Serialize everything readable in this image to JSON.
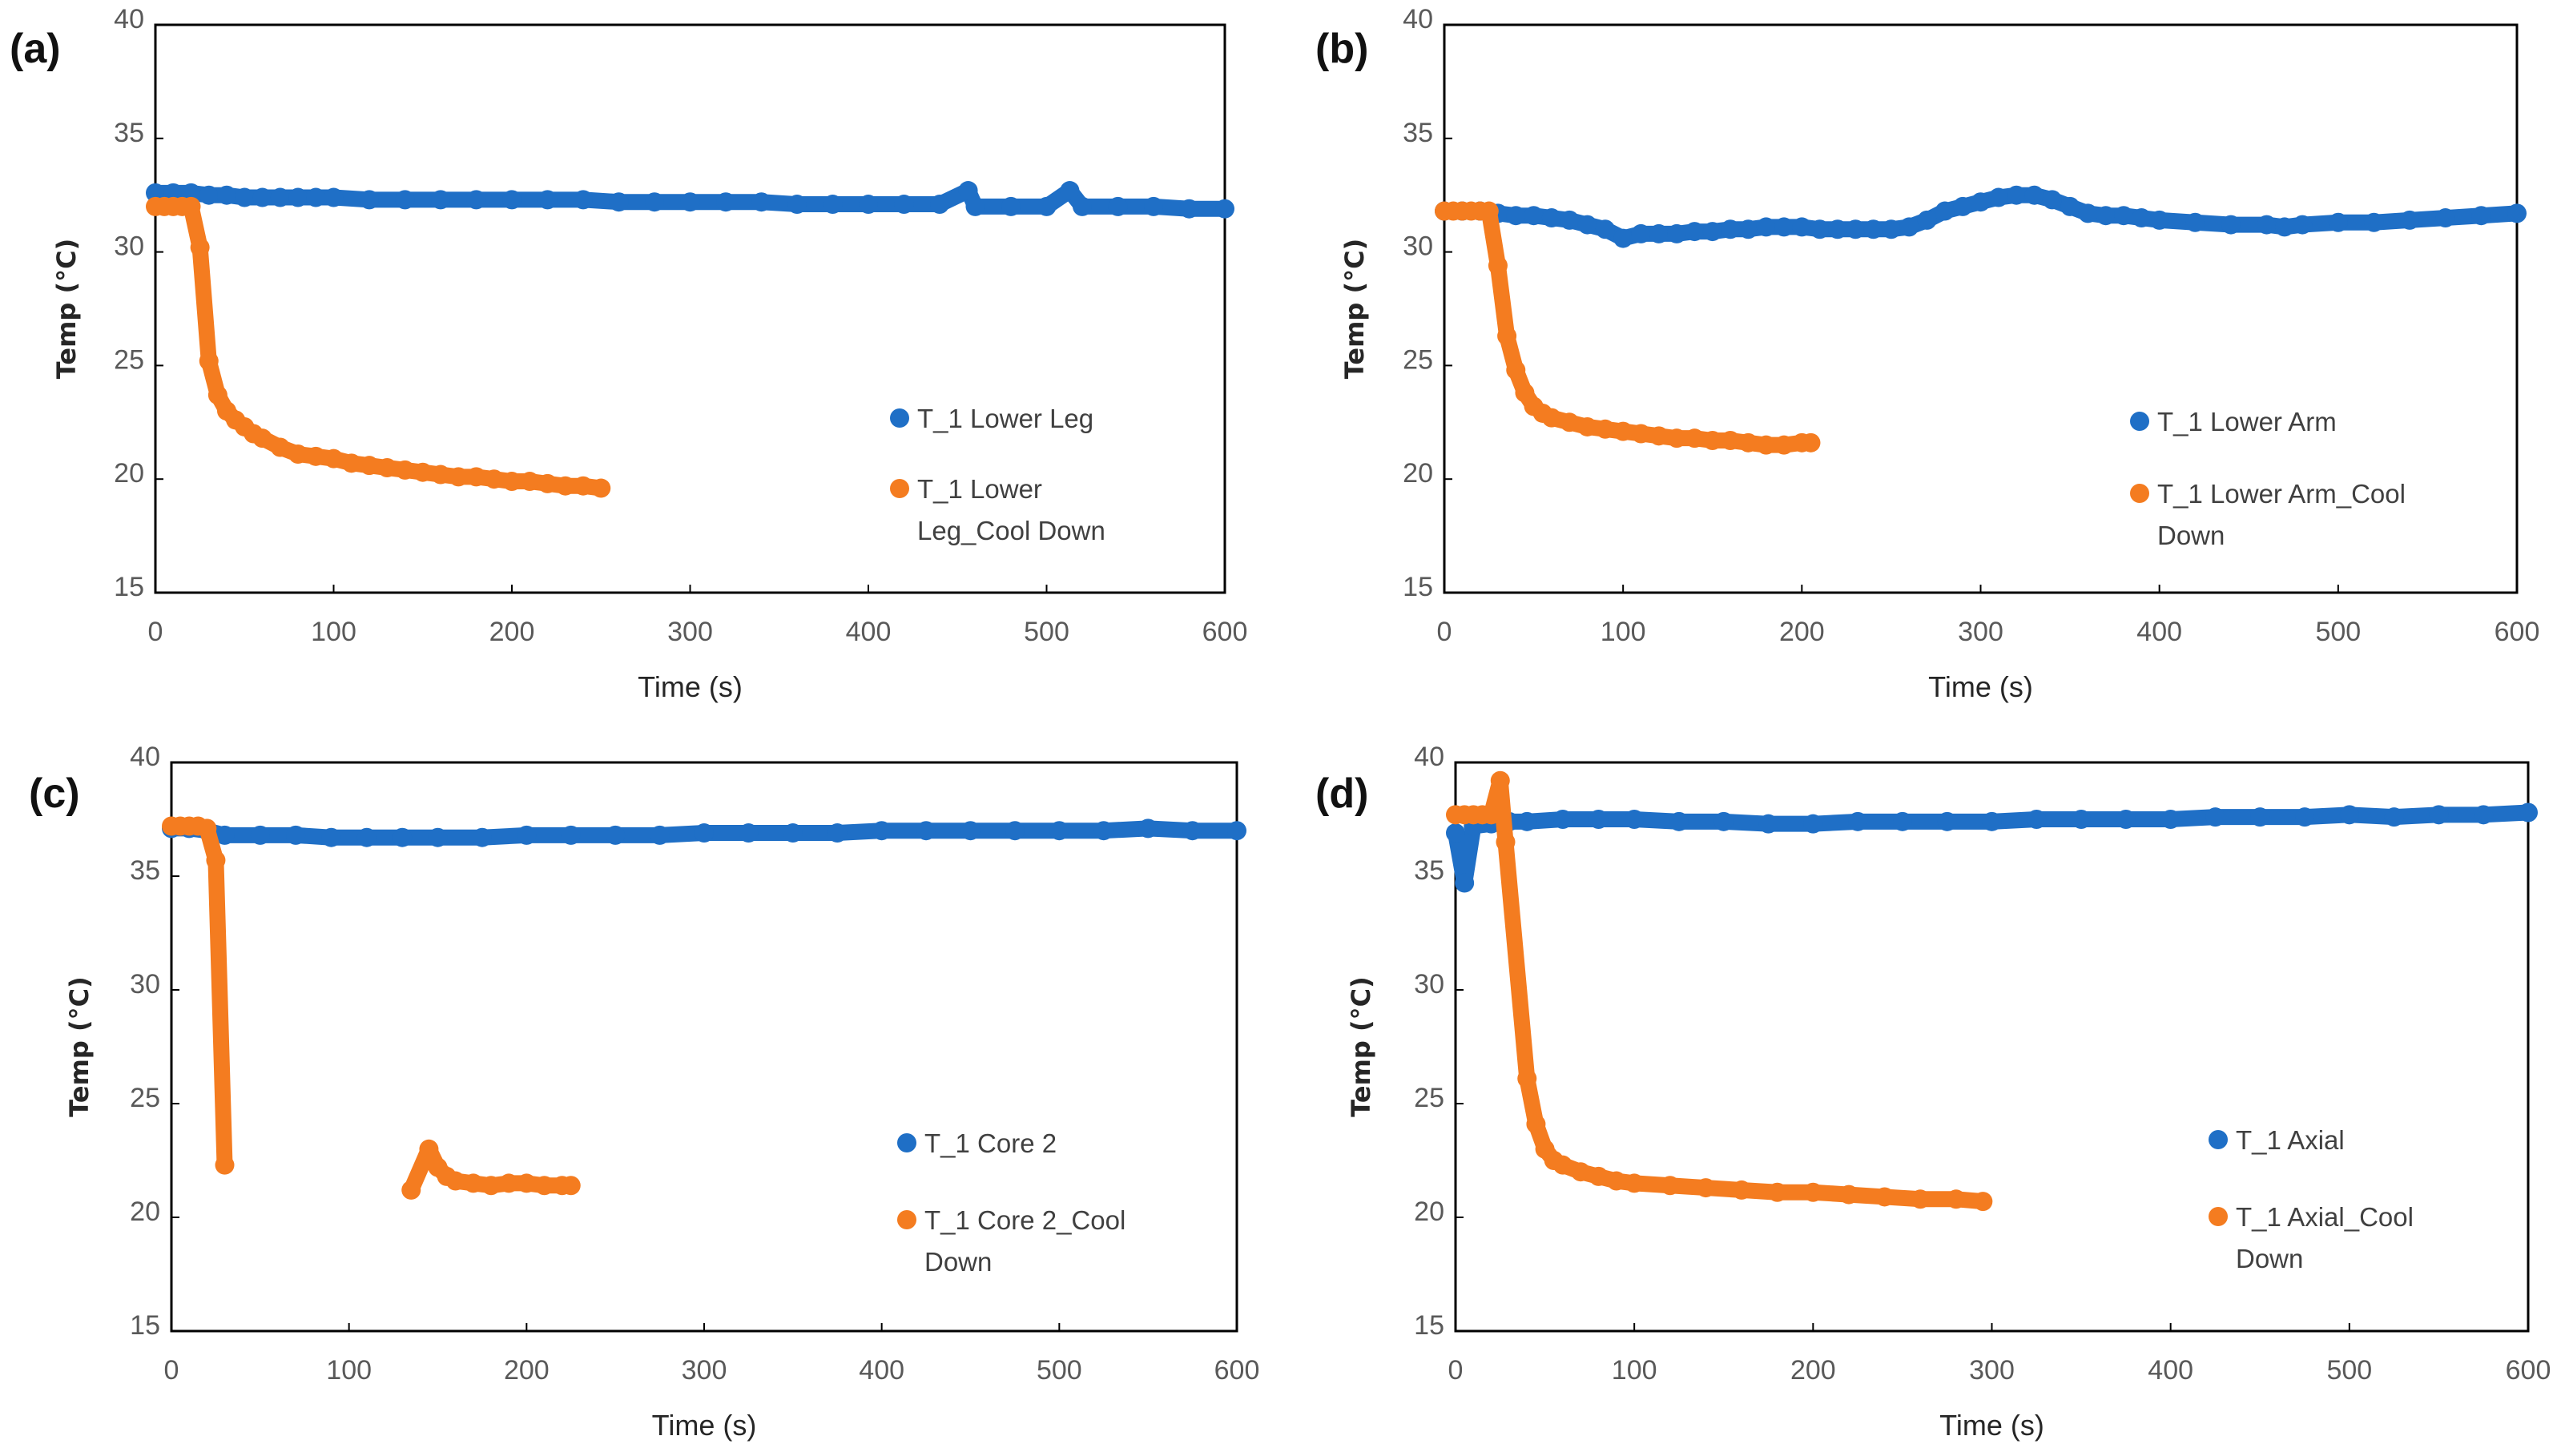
{
  "colors": {
    "series1": "#1f6fc6",
    "series2": "#f47c20",
    "axis": "#000000"
  },
  "chart_data": [
    {
      "panel": "(a)",
      "type": "scatter",
      "xlabel": "Time (s)",
      "ylabel": "Temp (°C)",
      "xlim": [
        0,
        600
      ],
      "ylim": [
        15,
        40
      ],
      "xticks": [
        0,
        100,
        200,
        300,
        400,
        500,
        600
      ],
      "yticks": [
        15,
        20,
        25,
        30,
        35,
        40
      ],
      "grid": false,
      "legend_position": "right-center",
      "series": [
        {
          "name": "T_1 Lower Leg",
          "points": [
            [
              0,
              32.6
            ],
            [
              10,
              32.6
            ],
            [
              20,
              32.6
            ],
            [
              30,
              32.5
            ],
            [
              40,
              32.5
            ],
            [
              50,
              32.4
            ],
            [
              60,
              32.4
            ],
            [
              70,
              32.4
            ],
            [
              80,
              32.4
            ],
            [
              90,
              32.4
            ],
            [
              100,
              32.4
            ],
            [
              120,
              32.3
            ],
            [
              140,
              32.3
            ],
            [
              160,
              32.3
            ],
            [
              180,
              32.3
            ],
            [
              200,
              32.3
            ],
            [
              220,
              32.3
            ],
            [
              240,
              32.3
            ],
            [
              260,
              32.2
            ],
            [
              280,
              32.2
            ],
            [
              300,
              32.2
            ],
            [
              320,
              32.2
            ],
            [
              340,
              32.2
            ],
            [
              360,
              32.1
            ],
            [
              380,
              32.1
            ],
            [
              400,
              32.1
            ],
            [
              420,
              32.1
            ],
            [
              440,
              32.1
            ],
            [
              456,
              32.7
            ],
            [
              460,
              32.0
            ],
            [
              480,
              32.0
            ],
            [
              500,
              32.0
            ],
            [
              513,
              32.7
            ],
            [
              520,
              32.0
            ],
            [
              540,
              32.0
            ],
            [
              560,
              32.0
            ],
            [
              580,
              31.9
            ],
            [
              600,
              31.9
            ]
          ]
        },
        {
          "name": "T_1 Lower Leg_Cool Down",
          "points": [
            [
              0,
              32.0
            ],
            [
              5,
              32.0
            ],
            [
              10,
              32.0
            ],
            [
              15,
              32.0
            ],
            [
              20,
              32.0
            ],
            [
              25,
              30.2
            ],
            [
              30,
              25.2
            ],
            [
              35,
              23.7
            ],
            [
              40,
              23.0
            ],
            [
              45,
              22.6
            ],
            [
              50,
              22.3
            ],
            [
              55,
              22.0
            ],
            [
              60,
              21.8
            ],
            [
              70,
              21.4
            ],
            [
              80,
              21.1
            ],
            [
              90,
              21.0
            ],
            [
              100,
              20.9
            ],
            [
              110,
              20.7
            ],
            [
              120,
              20.6
            ],
            [
              130,
              20.5
            ],
            [
              140,
              20.4
            ],
            [
              150,
              20.3
            ],
            [
              160,
              20.2
            ],
            [
              170,
              20.1
            ],
            [
              180,
              20.1
            ],
            [
              190,
              20.0
            ],
            [
              200,
              19.9
            ],
            [
              210,
              19.9
            ],
            [
              220,
              19.8
            ],
            [
              230,
              19.7
            ],
            [
              240,
              19.7
            ],
            [
              250,
              19.6
            ]
          ]
        }
      ]
    },
    {
      "panel": "(b)",
      "type": "scatter",
      "xlabel": "Time (s)",
      "ylabel": "Temp (°C)",
      "xlim": [
        0,
        600
      ],
      "ylim": [
        15,
        40
      ],
      "xticks": [
        0,
        100,
        200,
        300,
        400,
        500,
        600
      ],
      "yticks": [
        15,
        20,
        25,
        30,
        35,
        40
      ],
      "grid": false,
      "legend_position": "right-center",
      "series": [
        {
          "name": "T_1 Lower Arm",
          "points": [
            [
              0,
              31.8
            ],
            [
              10,
              31.8
            ],
            [
              20,
              31.8
            ],
            [
              30,
              31.7
            ],
            [
              40,
              31.6
            ],
            [
              50,
              31.6
            ],
            [
              60,
              31.5
            ],
            [
              70,
              31.4
            ],
            [
              80,
              31.2
            ],
            [
              90,
              31.0
            ],
            [
              100,
              30.6
            ],
            [
              110,
              30.8
            ],
            [
              120,
              30.8
            ],
            [
              130,
              30.8
            ],
            [
              140,
              30.9
            ],
            [
              150,
              30.9
            ],
            [
              160,
              31.0
            ],
            [
              170,
              31.0
            ],
            [
              180,
              31.1
            ],
            [
              190,
              31.1
            ],
            [
              200,
              31.1
            ],
            [
              210,
              31.0
            ],
            [
              220,
              31.0
            ],
            [
              230,
              31.0
            ],
            [
              240,
              31.0
            ],
            [
              250,
              31.0
            ],
            [
              260,
              31.1
            ],
            [
              270,
              31.4
            ],
            [
              280,
              31.8
            ],
            [
              290,
              32.0
            ],
            [
              300,
              32.2
            ],
            [
              310,
              32.4
            ],
            [
              320,
              32.5
            ],
            [
              330,
              32.5
            ],
            [
              340,
              32.3
            ],
            [
              350,
              32.0
            ],
            [
              360,
              31.7
            ],
            [
              370,
              31.6
            ],
            [
              380,
              31.6
            ],
            [
              390,
              31.5
            ],
            [
              400,
              31.4
            ],
            [
              420,
              31.3
            ],
            [
              440,
              31.2
            ],
            [
              460,
              31.2
            ],
            [
              470,
              31.1
            ],
            [
              480,
              31.2
            ],
            [
              500,
              31.3
            ],
            [
              520,
              31.3
            ],
            [
              540,
              31.4
            ],
            [
              560,
              31.5
            ],
            [
              580,
              31.6
            ],
            [
              600,
              31.7
            ]
          ]
        },
        {
          "name": "T_1 Lower Arm_Cool Down",
          "points": [
            [
              0,
              31.8
            ],
            [
              5,
              31.8
            ],
            [
              10,
              31.8
            ],
            [
              15,
              31.8
            ],
            [
              20,
              31.8
            ],
            [
              25,
              31.8
            ],
            [
              30,
              29.4
            ],
            [
              35,
              26.3
            ],
            [
              40,
              24.8
            ],
            [
              45,
              23.8
            ],
            [
              50,
              23.2
            ],
            [
              55,
              22.9
            ],
            [
              60,
              22.7
            ],
            [
              70,
              22.5
            ],
            [
              80,
              22.3
            ],
            [
              90,
              22.2
            ],
            [
              100,
              22.1
            ],
            [
              110,
              22.0
            ],
            [
              120,
              21.9
            ],
            [
              130,
              21.8
            ],
            [
              140,
              21.8
            ],
            [
              150,
              21.7
            ],
            [
              160,
              21.7
            ],
            [
              170,
              21.6
            ],
            [
              180,
              21.5
            ],
            [
              190,
              21.5
            ],
            [
              200,
              21.6
            ],
            [
              205,
              21.6
            ]
          ]
        }
      ]
    },
    {
      "panel": "(c)",
      "type": "scatter",
      "xlabel": "Time (s)",
      "ylabel": "Temp (°C)",
      "xlim": [
        0,
        600
      ],
      "ylim": [
        15,
        40
      ],
      "xticks": [
        0,
        100,
        200,
        300,
        400,
        500,
        600
      ],
      "yticks": [
        15,
        20,
        25,
        30,
        35,
        40
      ],
      "grid": false,
      "legend_position": "right-center",
      "series": [
        {
          "name": "T_1 Core 2",
          "points": [
            [
              0,
              37.1
            ],
            [
              10,
              37.1
            ],
            [
              20,
              37.0
            ],
            [
              30,
              36.8
            ],
            [
              50,
              36.8
            ],
            [
              70,
              36.8
            ],
            [
              90,
              36.7
            ],
            [
              110,
              36.7
            ],
            [
              130,
              36.7
            ],
            [
              150,
              36.7
            ],
            [
              175,
              36.7
            ],
            [
              200,
              36.8
            ],
            [
              225,
              36.8
            ],
            [
              250,
              36.8
            ],
            [
              275,
              36.8
            ],
            [
              300,
              36.9
            ],
            [
              325,
              36.9
            ],
            [
              350,
              36.9
            ],
            [
              375,
              36.9
            ],
            [
              400,
              37.0
            ],
            [
              425,
              37.0
            ],
            [
              450,
              37.0
            ],
            [
              475,
              37.0
            ],
            [
              500,
              37.0
            ],
            [
              525,
              37.0
            ],
            [
              550,
              37.1
            ],
            [
              575,
              37.0
            ],
            [
              600,
              37.0
            ]
          ]
        },
        {
          "name": "T_1 Core 2_Cool Down",
          "points": [
            [
              0,
              37.2
            ],
            [
              5,
              37.2
            ],
            [
              10,
              37.2
            ],
            [
              15,
              37.2
            ],
            [
              20,
              37.1
            ],
            [
              25,
              35.7
            ],
            [
              30,
              22.3
            ],
            [
              135,
              21.2
            ],
            [
              145,
              23.0
            ],
            [
              150,
              22.2
            ],
            [
              155,
              21.8
            ],
            [
              160,
              21.6
            ],
            [
              170,
              21.5
            ],
            [
              180,
              21.4
            ],
            [
              190,
              21.5
            ],
            [
              200,
              21.5
            ],
            [
              210,
              21.4
            ],
            [
              220,
              21.4
            ],
            [
              225,
              21.4
            ]
          ]
        }
      ]
    },
    {
      "panel": "(d)",
      "type": "scatter",
      "xlabel": "Time (s)",
      "ylabel": "Temp (°C)",
      "xlim": [
        0,
        600
      ],
      "ylim": [
        15,
        40
      ],
      "xticks": [
        0,
        100,
        200,
        300,
        400,
        500,
        600
      ],
      "yticks": [
        15,
        20,
        25,
        30,
        35,
        40
      ],
      "grid": false,
      "legend_position": "right-center",
      "series": [
        {
          "name": "T_1 Axial",
          "points": [
            [
              0,
              36.9
            ],
            [
              5,
              34.7
            ],
            [
              10,
              37.2
            ],
            [
              20,
              37.3
            ],
            [
              30,
              37.4
            ],
            [
              40,
              37.4
            ],
            [
              60,
              37.5
            ],
            [
              80,
              37.5
            ],
            [
              100,
              37.5
            ],
            [
              125,
              37.4
            ],
            [
              150,
              37.4
            ],
            [
              175,
              37.3
            ],
            [
              200,
              37.3
            ],
            [
              225,
              37.4
            ],
            [
              250,
              37.4
            ],
            [
              275,
              37.4
            ],
            [
              300,
              37.4
            ],
            [
              325,
              37.5
            ],
            [
              350,
              37.5
            ],
            [
              375,
              37.5
            ],
            [
              400,
              37.5
            ],
            [
              425,
              37.6
            ],
            [
              450,
              37.6
            ],
            [
              475,
              37.6
            ],
            [
              500,
              37.7
            ],
            [
              525,
              37.6
            ],
            [
              550,
              37.7
            ],
            [
              575,
              37.7
            ],
            [
              600,
              37.8
            ]
          ]
        },
        {
          "name": "T_1 Axial_Cool Down",
          "points": [
            [
              0,
              37.7
            ],
            [
              5,
              37.7
            ],
            [
              10,
              37.7
            ],
            [
              15,
              37.7
            ],
            [
              20,
              37.7
            ],
            [
              25,
              39.2
            ],
            [
              28,
              36.5
            ],
            [
              40,
              26.1
            ],
            [
              45,
              24.1
            ],
            [
              50,
              23.0
            ],
            [
              55,
              22.5
            ],
            [
              60,
              22.3
            ],
            [
              70,
              22.0
            ],
            [
              80,
              21.8
            ],
            [
              90,
              21.6
            ],
            [
              100,
              21.5
            ],
            [
              120,
              21.4
            ],
            [
              140,
              21.3
            ],
            [
              160,
              21.2
            ],
            [
              180,
              21.1
            ],
            [
              200,
              21.1
            ],
            [
              220,
              21.0
            ],
            [
              240,
              20.9
            ],
            [
              260,
              20.8
            ],
            [
              280,
              20.8
            ],
            [
              295,
              20.7
            ]
          ]
        }
      ]
    }
  ]
}
